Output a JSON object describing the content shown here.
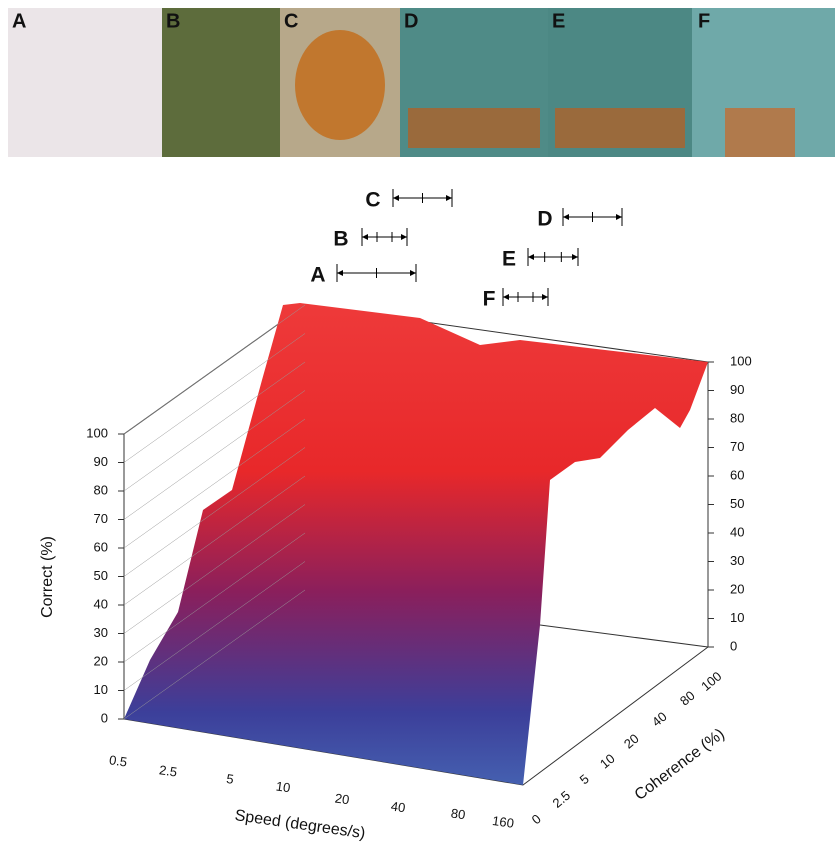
{
  "panels": [
    "A",
    "B",
    "C",
    "D",
    "E",
    "F"
  ],
  "range_labels": [
    "A",
    "B",
    "C",
    "D",
    "E",
    "F"
  ],
  "plot": {
    "y_label": "Correct (%)",
    "x_label": "Speed (degrees/s)",
    "z_label": "Coherence (%)",
    "y_ticks_left": [
      0,
      10,
      20,
      30,
      40,
      50,
      60,
      70,
      80,
      90,
      100
    ],
    "y_ticks_right": [
      0,
      10,
      20,
      30,
      40,
      50,
      60,
      70,
      80,
      90,
      100
    ],
    "speed_ticks": [
      0.5,
      2.5,
      5,
      10,
      20,
      40,
      80,
      160
    ],
    "coherence_ticks": [
      0,
      2.5,
      5,
      10,
      20,
      40,
      80,
      100
    ]
  }
}
